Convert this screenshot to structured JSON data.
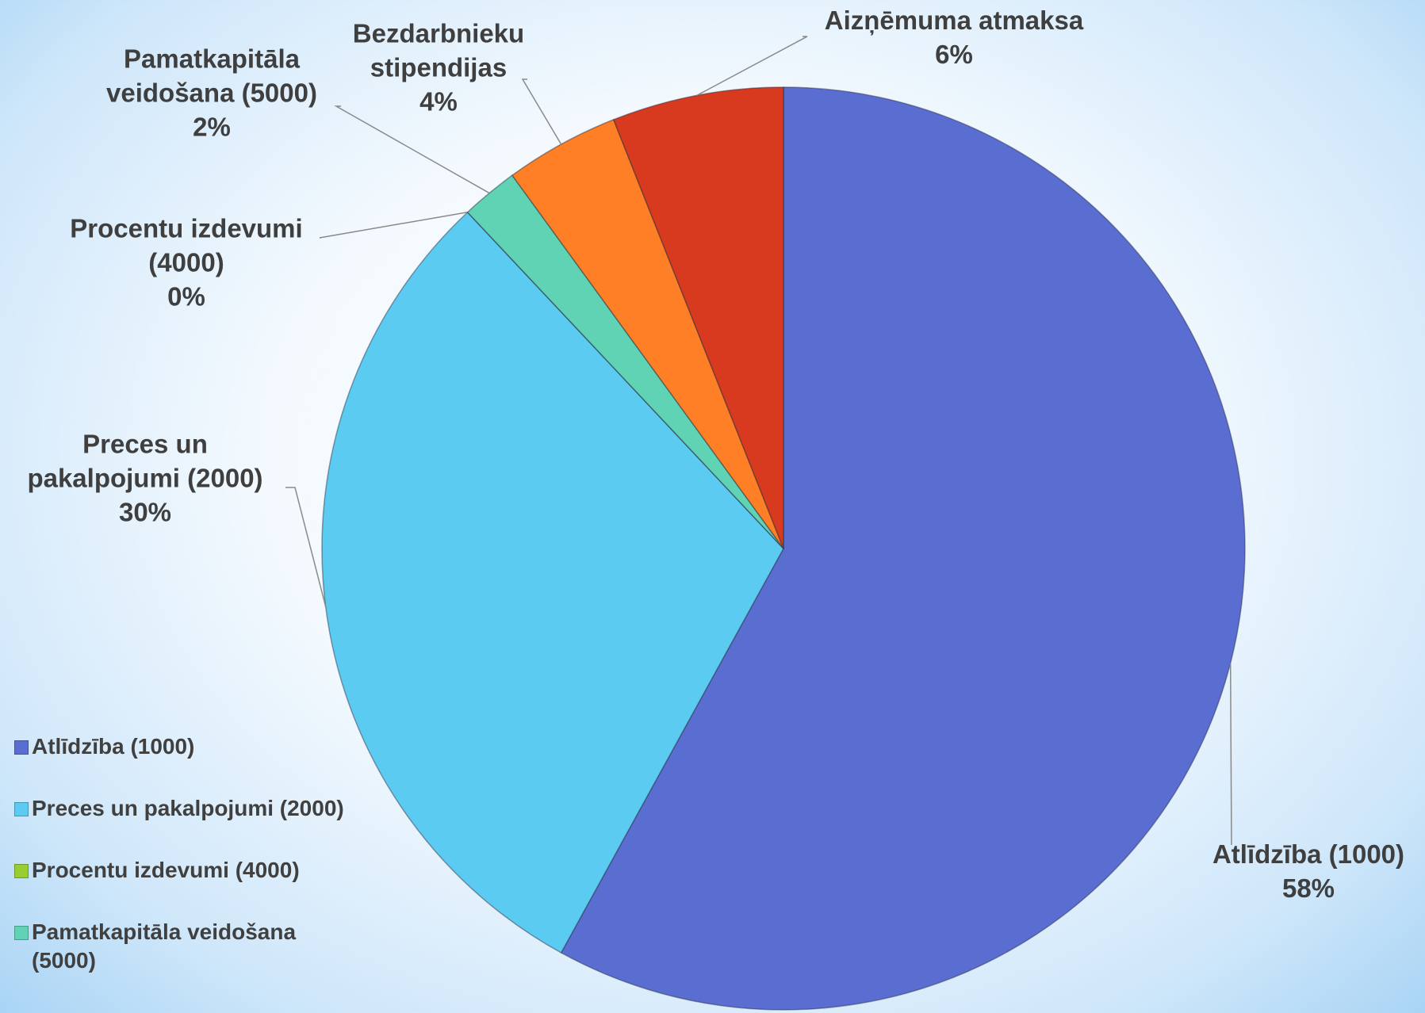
{
  "chart_data": {
    "type": "pie",
    "categories": [
      "Atlīdzība (1000)",
      "Preces un pakalpojumi (2000)",
      "Procentu izdevumi (4000)",
      "Pamatkapitāla veidošana (5000)",
      "Bezdarbnieku stipendijas",
      "Aizņēmuma atmaksa"
    ],
    "values": [
      58,
      30,
      0,
      2,
      4,
      6
    ],
    "value_labels": [
      "58%",
      "30%",
      "0%",
      "2%",
      "4%",
      "6%"
    ],
    "colors": [
      "#5a6ed2",
      "#5ccbf2",
      "#9acd32",
      "#5fd3b3",
      "#ff7f27",
      "#d73a1e"
    ],
    "legend": "left"
  }
}
